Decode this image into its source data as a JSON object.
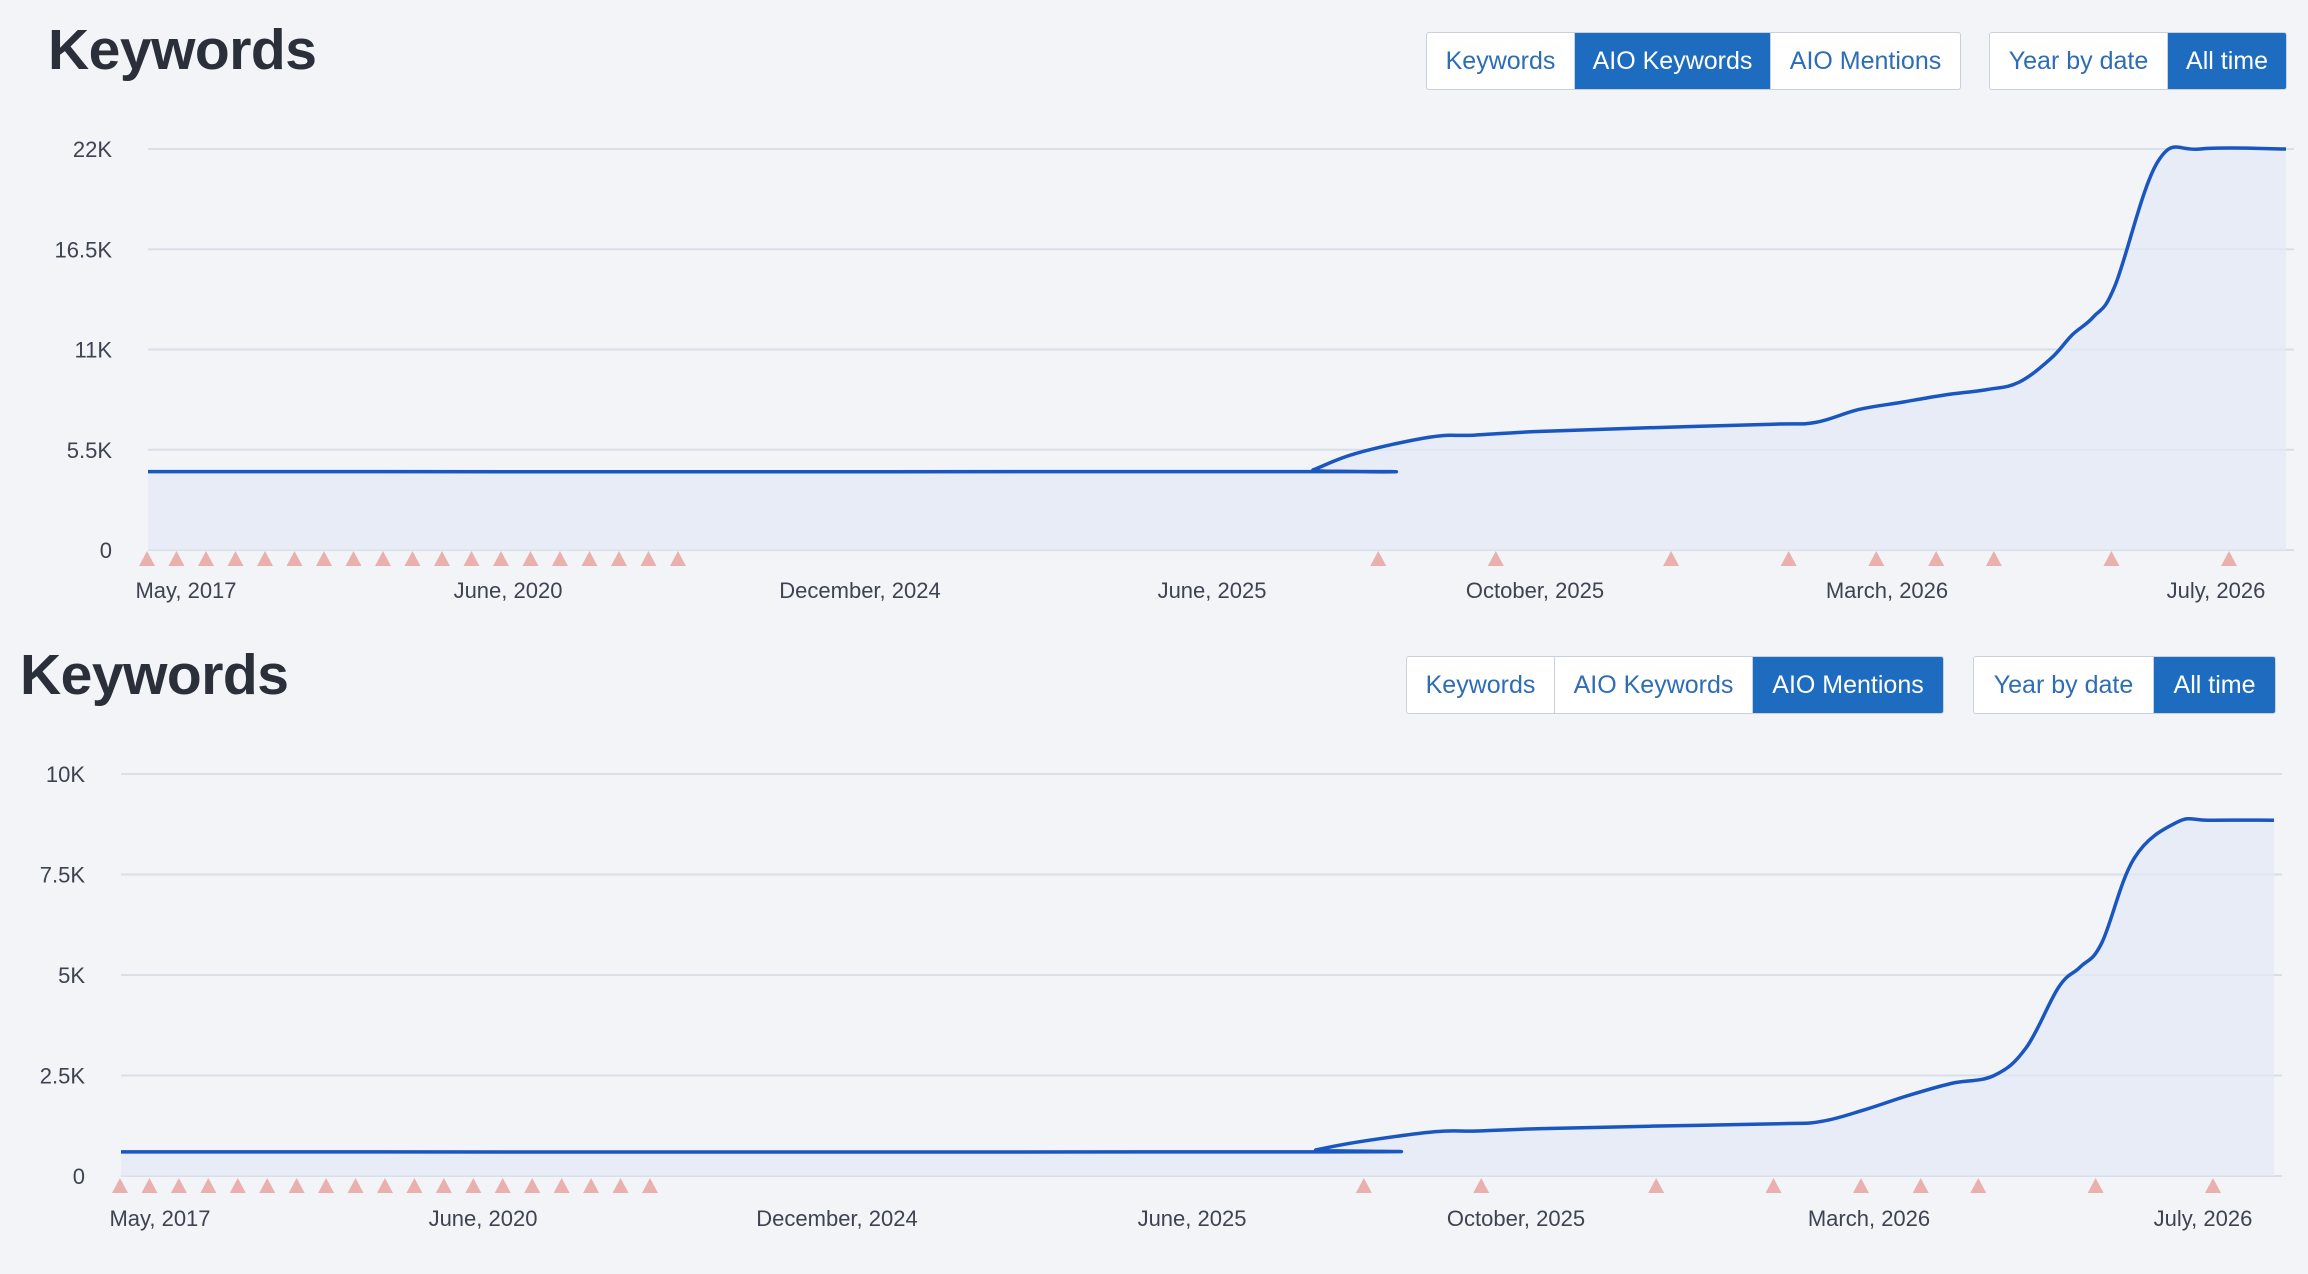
{
  "panels": [
    {
      "title": "Keywords",
      "metric_tabs": [
        "Keywords",
        "AIO Keywords",
        "AIO Mentions"
      ],
      "active_metric": "AIO Keywords",
      "period_tabs": [
        "Year by date",
        "All time"
      ],
      "active_period": "All time"
    },
    {
      "title": "Keywords",
      "metric_tabs": [
        "Keywords",
        "AIO Keywords",
        "AIO Mentions"
      ],
      "active_metric": "AIO Mentions",
      "period_tabs": [
        "Year by date",
        "All time"
      ],
      "active_period": "All time"
    }
  ],
  "colors": {
    "line": "#1a56bf",
    "area": "#e3e9f5",
    "grid": "#d9dee7",
    "marker": "#eab0ae",
    "active_button": "#1e6cc0"
  },
  "chart_data": [
    {
      "type": "area",
      "title": "Keywords",
      "series_label": "AIO Keywords",
      "y_ticks": [
        "0",
        "5.5K",
        "11K",
        "16.5K",
        "22K"
      ],
      "ylim": [
        0,
        22000
      ],
      "x_ticks": [
        "May, 2017",
        "June, 2020",
        "December, 2024",
        "June, 2025",
        "October, 2025",
        "March, 2026",
        "July, 2026"
      ],
      "grid": true,
      "series": [
        {
          "x": [
            0,
            0.54,
            0.545,
            0.565,
            0.6,
            0.62,
            0.65,
            0.7,
            0.76,
            0.78,
            0.8,
            0.82,
            0.84,
            0.86,
            0.875,
            0.89,
            0.9,
            0.91,
            0.92,
            0.94,
            0.96,
            1.0
          ],
          "values": [
            4300,
            4300,
            4400,
            5300,
            6200,
            6300,
            6500,
            6700,
            6900,
            7000,
            7700,
            8100,
            8500,
            8800,
            9200,
            10500,
            11800,
            12800,
            14500,
            21300,
            22000,
            22000
          ]
        }
      ],
      "markers": [
        0.0,
        0.0138,
        0.0276,
        0.0414,
        0.0552,
        0.069,
        0.0828,
        0.0966,
        0.1104,
        0.1242,
        0.138,
        0.1518,
        0.1656,
        0.1794,
        0.1932,
        0.207,
        0.2208,
        0.2346,
        0.2484,
        0.576,
        0.631,
        0.713,
        0.768,
        0.809,
        0.837,
        0.864,
        0.919,
        0.974
      ]
    },
    {
      "type": "area",
      "title": "Keywords",
      "series_label": "AIO Mentions",
      "y_ticks": [
        "0",
        "2.5K",
        "5K",
        "7.5K",
        "10K"
      ],
      "ylim": [
        0,
        10000
      ],
      "x_ticks": [
        "May, 2017",
        "June, 2020",
        "December, 2024",
        "June, 2025",
        "October, 2025",
        "March, 2026",
        "July, 2026"
      ],
      "grid": true,
      "series": [
        {
          "x": [
            0,
            0.55,
            0.555,
            0.575,
            0.61,
            0.63,
            0.66,
            0.71,
            0.77,
            0.79,
            0.81,
            0.83,
            0.85,
            0.87,
            0.885,
            0.9,
            0.91,
            0.92,
            0.935,
            0.955,
            0.97,
            1.0
          ],
          "values": [
            600,
            600,
            650,
            850,
            1100,
            1120,
            1180,
            1240,
            1300,
            1360,
            1650,
            2000,
            2300,
            2500,
            3200,
            4700,
            5200,
            5800,
            7900,
            8800,
            8850,
            8850
          ]
        }
      ],
      "markers": [
        0.0,
        0.0138,
        0.0276,
        0.0414,
        0.0552,
        0.069,
        0.0828,
        0.0966,
        0.1104,
        0.1242,
        0.138,
        0.1518,
        0.1656,
        0.1794,
        0.1932,
        0.207,
        0.2208,
        0.2346,
        0.2484,
        0.583,
        0.638,
        0.72,
        0.775,
        0.816,
        0.844,
        0.871,
        0.926,
        0.981
      ]
    }
  ]
}
